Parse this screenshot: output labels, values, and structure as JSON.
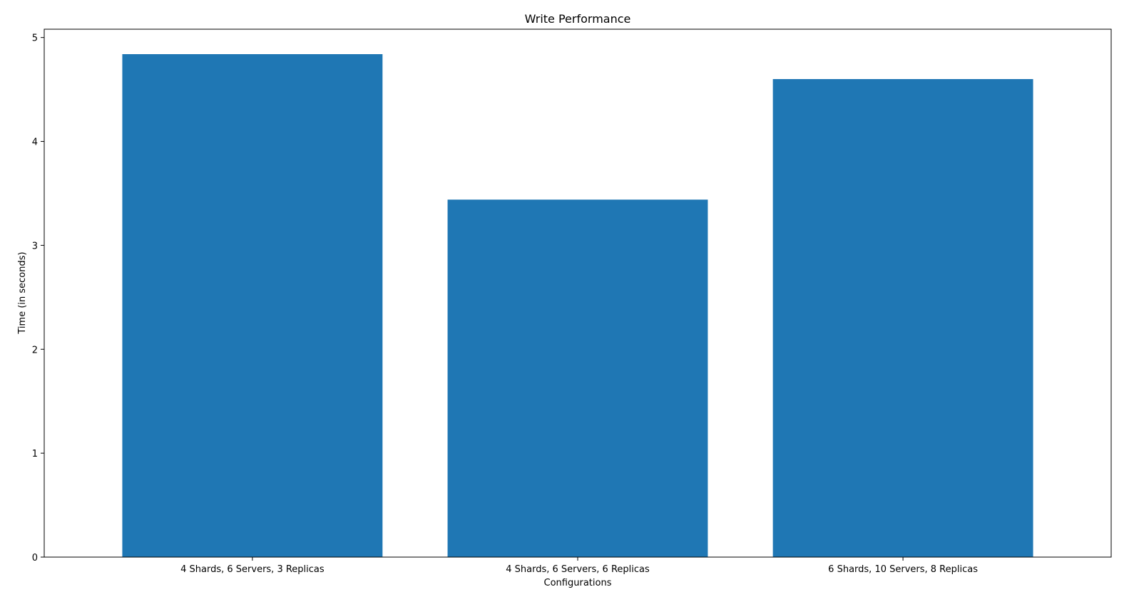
{
  "chart_data": {
    "type": "bar",
    "title": "Write Performance",
    "xlabel": "Configurations",
    "ylabel": "Time (in seconds)",
    "categories": [
      "4 Shards, 6 Servers, 3 Replicas",
      "4 Shards, 6 Servers, 6 Replicas",
      "6 Shards, 10 Servers, 8 Replicas"
    ],
    "values": [
      4.84,
      3.44,
      4.6
    ],
    "ylim": [
      0,
      5.08
    ],
    "yticks": [
      "0",
      "1",
      "2",
      "3",
      "4",
      "5"
    ],
    "grid": false,
    "bar_color": "#1f77b4"
  }
}
